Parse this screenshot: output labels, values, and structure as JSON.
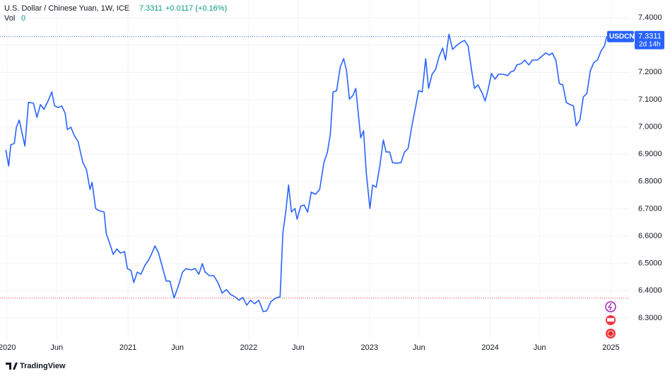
{
  "chart_data": {
    "type": "line",
    "title": "U.S. Dollar / Chinese Yuan, 1W, ICE",
    "last_price": 7.3311,
    "change": "+0.0117 (+0.16%)",
    "volume_label": "Vol",
    "volume": 0,
    "countdown": "2d 14h",
    "brand": "TradingView",
    "reference_line": 6.373,
    "x": [
      2019.988,
      2020.012,
      2020.029,
      2020.059,
      2020.076,
      2020.1,
      2020.117,
      2020.146,
      2020.176,
      2020.217,
      2020.246,
      2020.275,
      2020.304,
      2020.34,
      2020.369,
      2020.392,
      2020.422,
      2020.451,
      2020.48,
      2020.498,
      2020.527,
      2020.556,
      2020.586,
      2020.626,
      2020.656,
      2020.685,
      2020.703,
      2020.732,
      2020.761,
      2020.802,
      2020.82,
      2020.849,
      2020.878,
      2020.908,
      2020.937,
      2020.972,
      2020.995,
      2021.025,
      2021.048,
      2021.077,
      2021.107,
      2021.142,
      2021.171,
      2021.194,
      2021.224,
      2021.253,
      2021.288,
      2021.317,
      2021.347,
      2021.382,
      2021.417,
      2021.452,
      2021.481,
      2021.522,
      2021.557,
      2021.587,
      2021.616,
      2021.639,
      2021.675,
      2021.71,
      2021.745,
      2021.78,
      2021.815,
      2021.85,
      2021.885,
      2021.92,
      2021.95,
      2021.985,
      2022.014,
      2022.049,
      2022.084,
      2022.12,
      2022.149,
      2022.184,
      2022.225,
      2022.26,
      2022.283,
      2022.307,
      2022.33,
      2022.354,
      2022.383,
      2022.401,
      2022.43,
      2022.459,
      2022.488,
      2022.518,
      2022.553,
      2022.588,
      2022.623,
      2022.652,
      2022.676,
      2022.699,
      2022.728,
      2022.758,
      2022.787,
      2022.81,
      2022.834,
      2022.863,
      2022.887,
      2022.91,
      2022.928,
      2022.951,
      2022.974,
      2023.004,
      2023.027,
      2023.056,
      2023.086,
      2023.115,
      2023.138,
      2023.168,
      2023.191,
      2023.226,
      2023.261,
      2023.291,
      2023.32,
      2023.355,
      2023.384,
      2023.408,
      2023.437,
      2023.466,
      2023.49,
      2023.519,
      2023.548,
      2023.577,
      2023.607,
      2023.63,
      2023.659,
      2023.689,
      2023.718,
      2023.753,
      2023.788,
      2023.817,
      2023.847,
      2023.87,
      2023.899,
      2023.935,
      2023.958,
      2023.981,
      2024.011,
      2024.04,
      2024.069,
      2024.11,
      2024.145,
      2024.169,
      2024.198,
      2024.221,
      2024.257,
      2024.286,
      2024.321,
      2024.35,
      2024.391,
      2024.426,
      2024.461,
      2024.491,
      2024.514,
      2024.544,
      2024.573,
      2024.602,
      2024.631,
      2024.661,
      2024.69,
      2024.713,
      2024.743,
      2024.772,
      2024.801,
      2024.83,
      2024.86,
      2024.889,
      2024.918,
      2024.947,
      2024.965
    ],
    "series": [
      {
        "name": "USDCNY",
        "color": "#2962ff",
        "values": [
          6.916,
          6.857,
          6.934,
          6.94,
          6.999,
          7.025,
          6.99,
          6.93,
          7.09,
          7.087,
          7.035,
          7.082,
          7.064,
          7.097,
          7.128,
          7.077,
          7.071,
          7.077,
          7.05,
          6.99,
          6.999,
          6.968,
          6.947,
          6.87,
          6.844,
          6.771,
          6.797,
          6.701,
          6.693,
          6.688,
          6.61,
          6.572,
          6.533,
          6.553,
          6.538,
          6.543,
          6.481,
          6.474,
          6.43,
          6.468,
          6.46,
          6.494,
          6.512,
          6.533,
          6.564,
          6.538,
          6.481,
          6.435,
          6.435,
          6.373,
          6.417,
          6.468,
          6.481,
          6.476,
          6.481,
          6.46,
          6.499,
          6.468,
          6.455,
          6.455,
          6.43,
          6.391,
          6.404,
          6.386,
          6.378,
          6.365,
          6.375,
          6.347,
          6.365,
          6.352,
          6.365,
          6.323,
          6.326,
          6.36,
          6.373,
          6.378,
          6.61,
          6.688,
          6.787,
          6.688,
          6.701,
          6.662,
          6.709,
          6.714,
          6.688,
          6.761,
          6.753,
          6.771,
          6.869,
          6.908,
          6.973,
          7.128,
          7.133,
          7.219,
          7.25,
          7.206,
          7.102,
          7.115,
          7.141,
          7.038,
          6.96,
          6.986,
          6.831,
          6.701,
          6.787,
          6.779,
          6.857,
          6.952,
          6.908,
          6.908,
          6.869,
          6.867,
          6.869,
          6.908,
          6.921,
          7.012,
          7.077,
          7.133,
          7.128,
          7.25,
          7.141,
          7.193,
          7.211,
          7.258,
          7.289,
          7.245,
          7.34,
          7.284,
          7.297,
          7.309,
          7.317,
          7.297,
          7.206,
          7.141,
          7.154,
          7.123,
          7.095,
          7.133,
          7.196,
          7.175,
          7.193,
          7.193,
          7.188,
          7.201,
          7.206,
          7.227,
          7.232,
          7.245,
          7.227,
          7.245,
          7.245,
          7.258,
          7.271,
          7.263,
          7.271,
          7.245,
          7.159,
          7.154,
          7.089,
          7.082,
          7.077,
          7.004,
          7.025,
          7.11,
          7.123,
          7.206,
          7.237,
          7.245,
          7.278,
          7.297,
          7.3311
        ]
      }
    ],
    "xlim": [
      2019.94,
      2025.15
    ],
    "xticks": [
      {
        "value": 2020,
        "label": "2020"
      },
      {
        "value": 2020.41,
        "label": "Jun"
      },
      {
        "value": 2021,
        "label": "2021"
      },
      {
        "value": 2021.41,
        "label": "Jun"
      },
      {
        "value": 2022,
        "label": "2022"
      },
      {
        "value": 2022.41,
        "label": "Jun"
      },
      {
        "value": 2023,
        "label": "2023"
      },
      {
        "value": 2023.41,
        "label": "Jun"
      },
      {
        "value": 2024,
        "label": "2024"
      },
      {
        "value": 2024.41,
        "label": "Jun"
      },
      {
        "value": 2025,
        "label": "2025"
      }
    ],
    "ylim": [
      6.222,
      7.465
    ],
    "yticks": [
      {
        "value": 6.3,
        "label": "6.3000"
      },
      {
        "value": 6.4,
        "label": "6.4000"
      },
      {
        "value": 6.5,
        "label": "6.5000"
      },
      {
        "value": 6.6,
        "label": "6.6000"
      },
      {
        "value": 6.7,
        "label": "6.7000"
      },
      {
        "value": 6.8,
        "label": "6.8000"
      },
      {
        "value": 6.9,
        "label": "6.9000"
      },
      {
        "value": 7.0,
        "label": "7.0000"
      },
      {
        "value": 7.1,
        "label": "7.1000"
      },
      {
        "value": 7.2,
        "label": "7.2000"
      },
      {
        "value": 7.3,
        "label": "7.3000"
      },
      {
        "value": 7.4,
        "label": "7.4000"
      }
    ],
    "grid": true
  }
}
